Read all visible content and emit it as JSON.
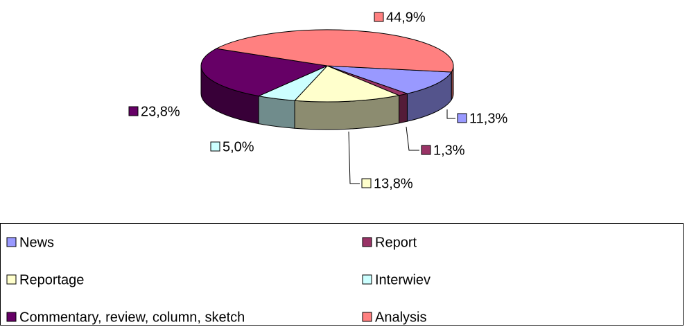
{
  "chart_data": {
    "type": "pie",
    "categories": [
      "News",
      "Report",
      "Reportage",
      "Interwiev",
      "Commentary, review, column, sketch",
      "Analysis"
    ],
    "values": [
      11.3,
      1.3,
      13.8,
      5.0,
      23.8,
      44.9
    ],
    "value_labels": [
      "11,3%",
      "1,3%",
      "13,8%",
      "5,0%",
      "23,8%",
      "44,9%"
    ],
    "colors": [
      "#9999ff",
      "#993366",
      "#ffffcc",
      "#ccffff",
      "#660066",
      "#ff8080"
    ],
    "legend": "bottom"
  }
}
